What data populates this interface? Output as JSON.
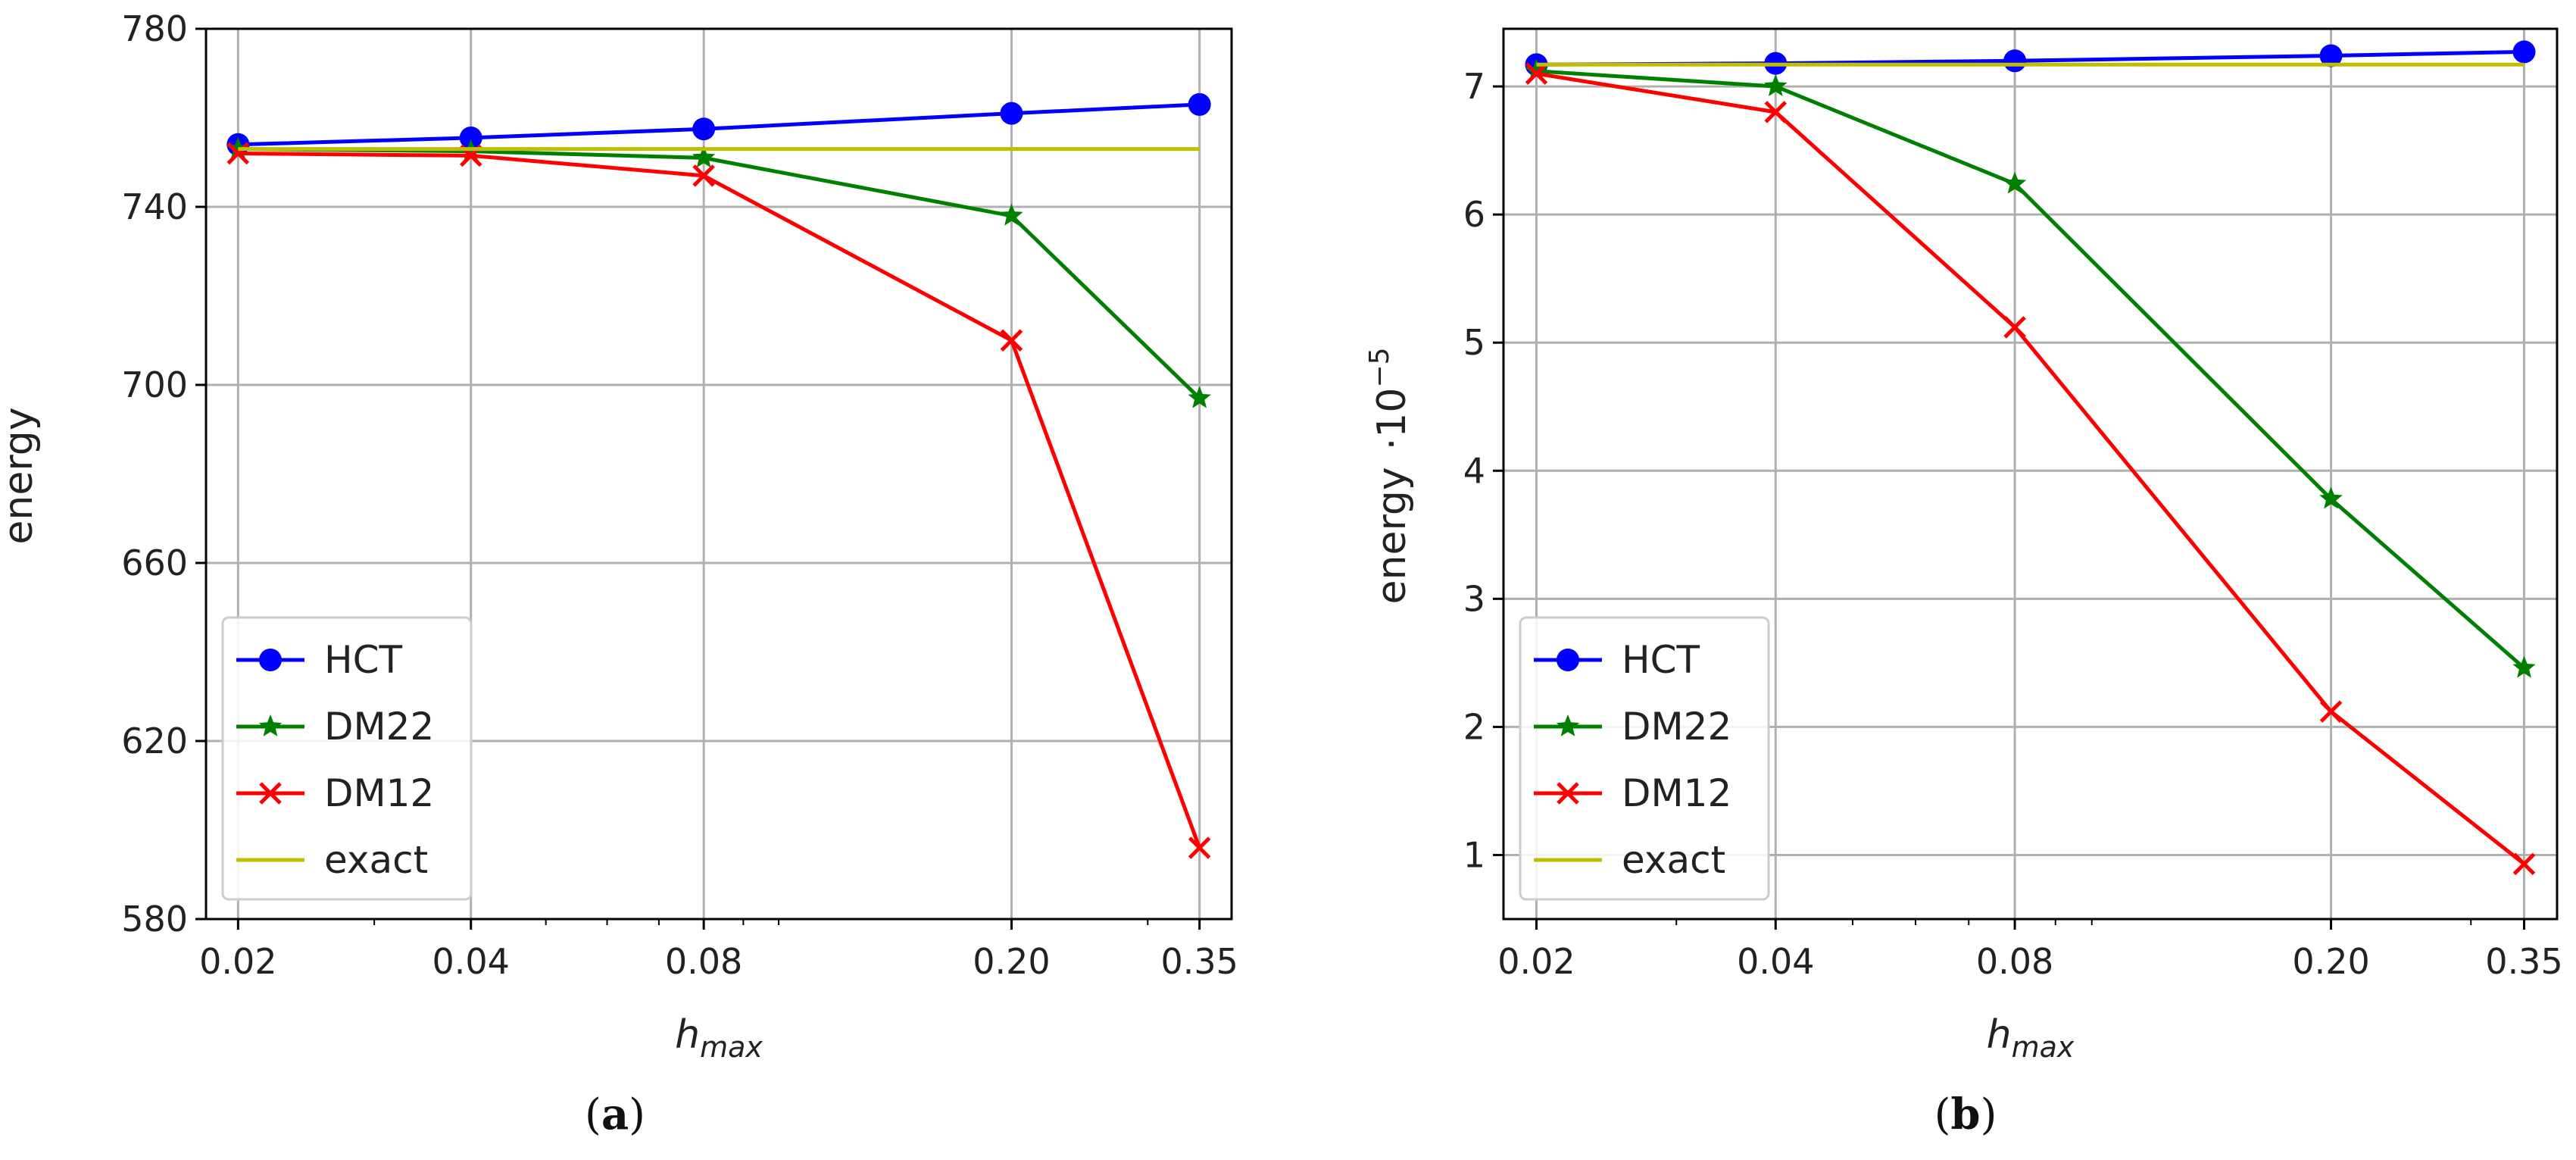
{
  "chart_data": [
    {
      "type": "line",
      "caption_letter": "a",
      "categories": [
        "0.02",
        "0.04",
        "0.08",
        "0.20",
        "0.35"
      ],
      "xlabel": "h",
      "xlabel_sub": "max",
      "ylabel": "energy",
      "ylabel_scale": "",
      "ylim": [
        580,
        780
      ],
      "yticks": [
        580,
        620,
        660,
        700,
        740,
        780
      ],
      "grid": true,
      "legend_position": "lower-left",
      "series": [
        {
          "name": "HCT",
          "color": "#0000ff",
          "marker": "circle",
          "values": [
            754,
            755.5,
            757.5,
            761,
            763
          ]
        },
        {
          "name": "DM22",
          "color": "#008000",
          "marker": "star",
          "values": [
            753,
            752.5,
            751,
            738,
            697
          ]
        },
        {
          "name": "DM12",
          "color": "#ff0000",
          "marker": "x",
          "values": [
            752,
            751.5,
            747,
            710,
            596
          ]
        },
        {
          "name": "exact",
          "color": "#bfbf00",
          "marker": "none",
          "values": [
            753,
            753,
            753,
            753,
            753
          ]
        }
      ]
    },
    {
      "type": "line",
      "caption_letter": "b",
      "categories": [
        "0.02",
        "0.04",
        "0.08",
        "0.20",
        "0.35"
      ],
      "xlabel": "h",
      "xlabel_sub": "max",
      "ylabel": "energy",
      "ylabel_scale": "·10",
      "ylabel_exp": "−5",
      "ylim": [
        0.5,
        7.45
      ],
      "yticks": [
        1,
        2,
        3,
        4,
        5,
        6,
        7
      ],
      "grid": true,
      "legend_position": "lower-left",
      "series": [
        {
          "name": "HCT",
          "color": "#0000ff",
          "marker": "circle",
          "values": [
            7.17,
            7.18,
            7.2,
            7.24,
            7.27
          ]
        },
        {
          "name": "DM22",
          "color": "#008000",
          "marker": "star",
          "values": [
            7.12,
            7.0,
            6.24,
            3.78,
            2.46
          ]
        },
        {
          "name": "DM12",
          "color": "#ff0000",
          "marker": "x",
          "values": [
            7.1,
            6.8,
            5.12,
            2.12,
            0.93
          ]
        },
        {
          "name": "exact",
          "color": "#bfbf00",
          "marker": "none",
          "values": [
            7.17,
            7.17,
            7.17,
            7.17,
            7.17
          ]
        }
      ]
    }
  ]
}
